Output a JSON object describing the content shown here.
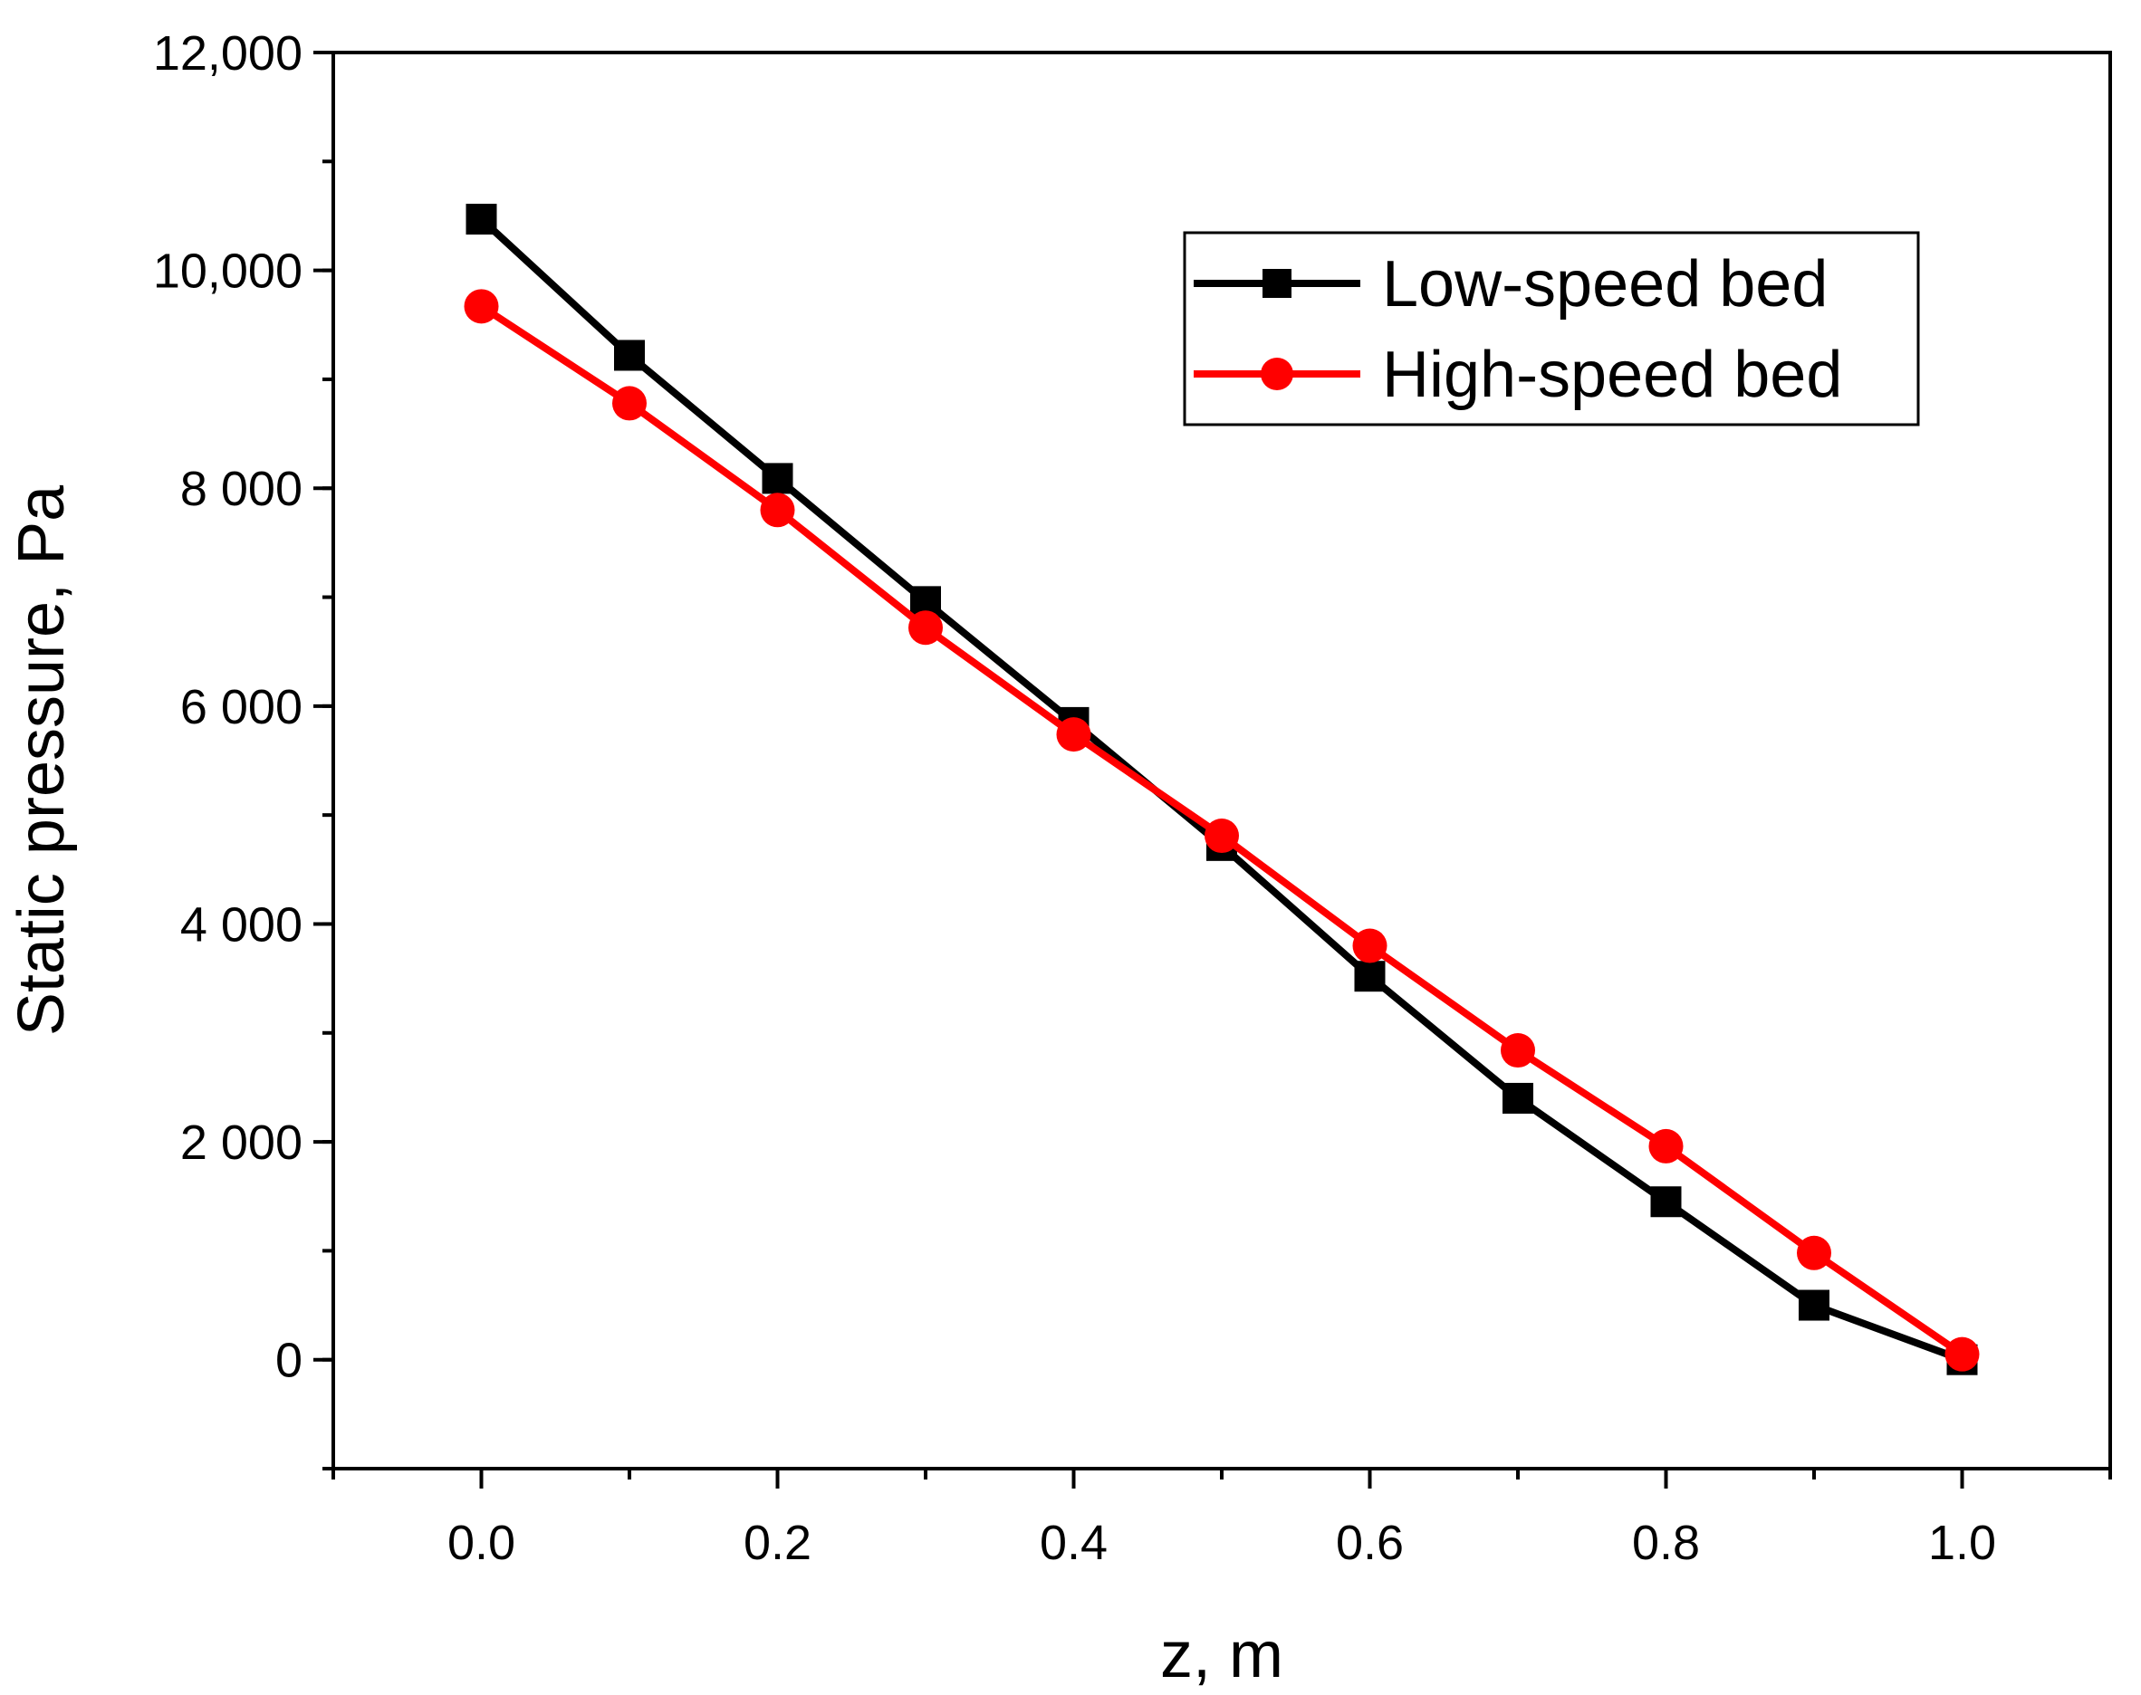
{
  "chart_data": {
    "type": "line",
    "title": "",
    "xlabel": "z, m",
    "ylabel": "Static pressure, Pa",
    "xlim": [
      -0.1,
      1.1
    ],
    "ylim": [
      -1000,
      12000
    ],
    "x_ticks": [
      0.0,
      0.2,
      0.4,
      0.6,
      0.8,
      1.0
    ],
    "x_tick_labels": [
      "0.0",
      "0.2",
      "0.4",
      "0.6",
      "0.8",
      "1.0"
    ],
    "y_ticks": [
      0,
      2000,
      4000,
      6000,
      8000,
      10000,
      12000
    ],
    "y_tick_labels": [
      "0",
      "2 000",
      "4 000",
      "6 000",
      "8 000",
      "10,000",
      "12,000"
    ],
    "grid": false,
    "legend_position": "top-right",
    "x": [
      0.0,
      0.1,
      0.2,
      0.3,
      0.4,
      0.5,
      0.6,
      0.7,
      0.8,
      0.9,
      1.0
    ],
    "series": [
      {
        "name": "Low-speed bed",
        "color": "#000000",
        "marker": "square",
        "values": [
          10470,
          9220,
          8090,
          6960,
          5850,
          4720,
          3520,
          2400,
          1450,
          500,
          0
        ]
      },
      {
        "name": "High-speed bed",
        "color": "#ff0000",
        "marker": "circle",
        "values": [
          9670,
          8780,
          7800,
          6720,
          5740,
          4810,
          3800,
          2840,
          1960,
          980,
          50
        ]
      }
    ]
  }
}
